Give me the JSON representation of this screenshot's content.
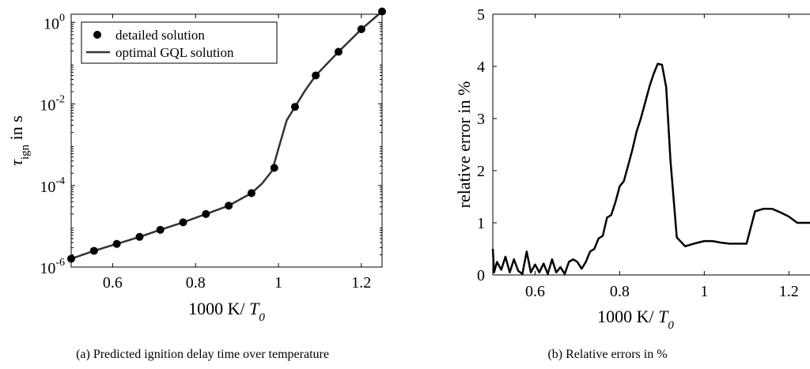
{
  "chart_data": [
    {
      "type": "line",
      "title": "",
      "xlabel_main": "1000 K/ ",
      "xlabel_var": "T",
      "xlabel_sub": "0",
      "ylabel_sym": "τ",
      "ylabel_sub": "ign",
      "ylabel_rest": " in s",
      "yscale": "log",
      "xlim": [
        0.5,
        1.25
      ],
      "ylim_exp": [
        -6,
        0.2
      ],
      "xticks": [
        0.6,
        0.8,
        1,
        1.2
      ],
      "xticklabels": [
        "0.6",
        "0.8",
        "1",
        "1.2"
      ],
      "yticks_exp": [
        -6,
        -4,
        -2,
        0
      ],
      "yticklabel_base": "10",
      "yticklabel_exps": [
        "-6",
        "-4",
        "-2",
        "0"
      ],
      "legend_position": "top-left",
      "series": [
        {
          "name": "detailed solution",
          "style": "markers",
          "color": "#000000",
          "x": [
            0.5,
            0.555,
            0.61,
            0.665,
            0.715,
            0.77,
            0.825,
            0.88,
            0.935,
            0.99,
            1.04,
            1.09,
            1.145,
            1.2,
            1.25
          ],
          "y": [
            1.6e-06,
            2.5e-06,
            3.7e-06,
            5.5e-06,
            8.2e-06,
            1.25e-05,
            2e-05,
            3.2e-05,
            6.5e-05,
            0.00027,
            0.0085,
            0.05,
            0.19,
            0.68,
            1.85
          ]
        },
        {
          "name": "optimal GQL solution",
          "style": "line",
          "color": "#333333",
          "x": [
            0.5,
            0.555,
            0.61,
            0.665,
            0.715,
            0.77,
            0.825,
            0.88,
            0.935,
            0.96,
            0.985,
            1.0,
            1.02,
            1.04,
            1.065,
            1.09,
            1.145,
            1.2,
            1.25
          ],
          "y": [
            1.6e-06,
            2.5e-06,
            3.7e-06,
            5.5e-06,
            8.2e-06,
            1.25e-05,
            2e-05,
            3.2e-05,
            6.5e-05,
            0.00011,
            0.00023,
            0.0008,
            0.004,
            0.0085,
            0.022,
            0.05,
            0.19,
            0.68,
            1.85
          ]
        }
      ],
      "caption": "(a) Predicted ignition delay time over temperature"
    },
    {
      "type": "line",
      "title": "",
      "xlabel_main": "1000 K/ ",
      "xlabel_var": "T",
      "xlabel_sub": "0",
      "ylabel": "relative error in %",
      "xlim": [
        0.5,
        1.25
      ],
      "ylim": [
        0,
        5
      ],
      "xticks": [
        0.6,
        0.8,
        1,
        1.2
      ],
      "xticklabels": [
        "0.6",
        "0.8",
        "1",
        "1.2"
      ],
      "yticks": [
        0,
        1,
        2,
        3,
        4,
        5
      ],
      "yticklabels": [
        "0",
        "1",
        "2",
        "3",
        "4",
        "5"
      ],
      "series": [
        {
          "color": "#000000",
          "x": [
            0.5,
            0.503,
            0.51,
            0.52,
            0.53,
            0.54,
            0.55,
            0.56,
            0.57,
            0.58,
            0.59,
            0.6,
            0.61,
            0.62,
            0.63,
            0.64,
            0.65,
            0.66,
            0.67,
            0.68,
            0.69,
            0.7,
            0.71,
            0.72,
            0.73,
            0.74,
            0.75,
            0.76,
            0.77,
            0.78,
            0.79,
            0.8,
            0.81,
            0.82,
            0.83,
            0.84,
            0.85,
            0.86,
            0.87,
            0.88,
            0.89,
            0.9,
            0.91,
            0.92,
            0.935,
            0.955,
            0.975,
            1.0,
            1.02,
            1.04,
            1.06,
            1.08,
            1.1,
            1.12,
            1.14,
            1.16,
            1.18,
            1.2,
            1.22,
            1.24,
            1.25
          ],
          "y": [
            0.5,
            0.05,
            0.25,
            0.1,
            0.35,
            0.05,
            0.3,
            0.08,
            0.02,
            0.45,
            0.05,
            0.2,
            0.05,
            0.22,
            0.02,
            0.3,
            0.05,
            0.15,
            0.02,
            0.25,
            0.3,
            0.25,
            0.12,
            0.25,
            0.45,
            0.5,
            0.7,
            0.75,
            1.1,
            1.15,
            1.4,
            1.7,
            1.8,
            2.1,
            2.4,
            2.75,
            3.0,
            3.3,
            3.6,
            3.85,
            4.05,
            4.03,
            3.6,
            2.2,
            0.72,
            0.55,
            0.6,
            0.65,
            0.65,
            0.62,
            0.6,
            0.6,
            0.6,
            1.22,
            1.27,
            1.27,
            1.2,
            1.12,
            1.0,
            1.0,
            1.0
          ],
          "y_note": ""
        }
      ],
      "caption": "(b) Relative errors in %"
    }
  ]
}
